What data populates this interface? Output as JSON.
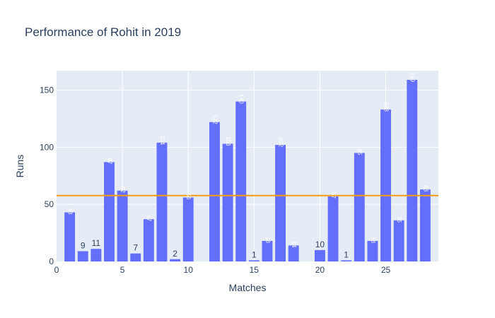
{
  "chart_data": {
    "type": "bar",
    "title": "Performance of Rohit in 2019",
    "xlabel": "Matches",
    "ylabel": "Runs",
    "x": [
      1,
      2,
      3,
      4,
      5,
      6,
      7,
      8,
      9,
      10,
      11,
      12,
      13,
      14,
      15,
      16,
      17,
      18,
      19,
      20,
      21,
      22,
      23,
      24,
      25,
      26,
      27,
      28
    ],
    "values": [
      43,
      9,
      11,
      87,
      62,
      7,
      37,
      104,
      2,
      56,
      0,
      122,
      103,
      140,
      1,
      18,
      102,
      14,
      0,
      10,
      57,
      1,
      95,
      18,
      133,
      36,
      159,
      63
    ],
    "xlim": [
      0,
      29
    ],
    "ylim": [
      0,
      167
    ],
    "xticks": [
      0,
      5,
      10,
      15,
      20,
      25
    ],
    "yticks": [
      0,
      50,
      100,
      150
    ],
    "average_line": 57.7,
    "grid": true,
    "colors": {
      "bar": "#636efa",
      "average_line": "#f39c12",
      "plot_bg": "#e5ecf6",
      "text": "#2a3f5f"
    }
  }
}
